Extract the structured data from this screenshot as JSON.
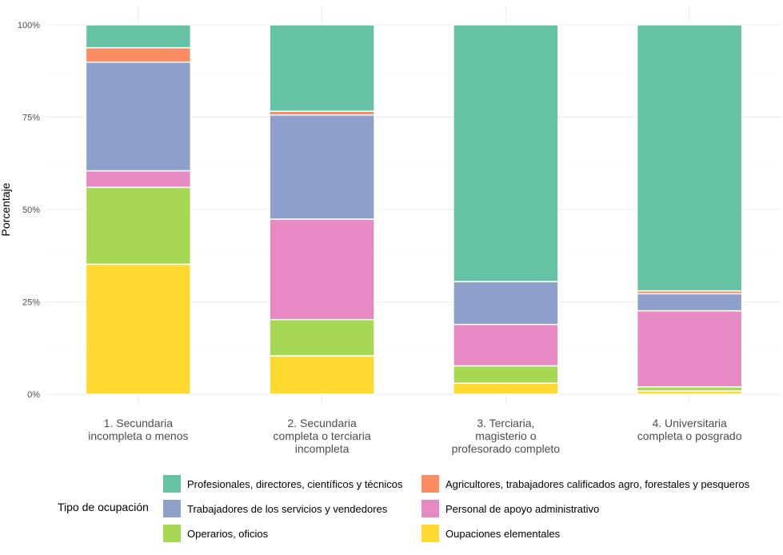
{
  "chart_data": {
    "type": "bar",
    "stacked": true,
    "title": "",
    "xlabel": "",
    "ylabel": "Porcentaje",
    "ylim": [
      0,
      100
    ],
    "yticks": [
      "0%",
      "25%",
      "50%",
      "75%",
      "100%"
    ],
    "ytick_values": [
      0,
      25,
      50,
      75,
      100
    ],
    "categories": [
      [
        "1. Secundaria",
        "incompleta o menos"
      ],
      [
        "2. Secundaria",
        "completa o terciaria",
        "incompleta"
      ],
      [
        "3. Terciaria,",
        "magisterio o",
        "profesorado completo"
      ],
      [
        "4. Universitaria",
        "completa o posgrado"
      ]
    ],
    "legend_title": "Tipo de ocupación",
    "series": [
      {
        "name": "Oupaciones elementales",
        "color": "#ffd92f",
        "values": [
          35.2,
          10.4,
          3.0,
          0.9
        ]
      },
      {
        "name": "Operarios, oficios",
        "color": "#a6d854",
        "values": [
          20.8,
          9.8,
          4.7,
          1.1
        ]
      },
      {
        "name": "Personal de apoyo administrativo",
        "color": "#e78ac3",
        "values": [
          4.5,
          27.2,
          11.2,
          20.6
        ]
      },
      {
        "name": "Trabajadores de los servicios y vendedores",
        "color": "#8da0cb",
        "values": [
          29.4,
          28.2,
          11.6,
          4.6
        ]
      },
      {
        "name": "Agricultores, trabajadores calificados agro, forestales y pesqueros",
        "color": "#fc8d62",
        "values": [
          3.9,
          1.0,
          0.0,
          0.8
        ]
      },
      {
        "name": "Profesionales, directores, científicos y técnicos",
        "color": "#66c2a5",
        "values": [
          6.2,
          23.4,
          69.5,
          72.0
        ]
      }
    ],
    "legend_layout": [
      [
        "Profesionales, directores, científicos y técnicos",
        "Agricultores, trabajadores calificados agro, forestales y pesqueros"
      ],
      [
        "Trabajadores de los servicios y vendedores",
        "Personal de apoyo administrativo"
      ],
      [
        "Operarios, oficios",
        "Oupaciones elementales"
      ]
    ]
  }
}
